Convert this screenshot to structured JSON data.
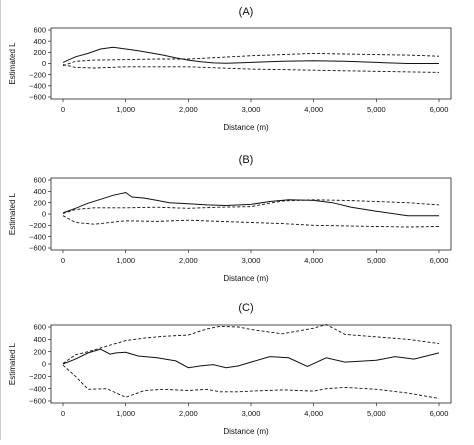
{
  "chart_data": [
    {
      "type": "line",
      "title": "(A)",
      "xlabel": "Distance (m)",
      "ylabel": "Estimated L",
      "xlim": [
        0,
        6000
      ],
      "ylim": [
        -600,
        600
      ],
      "xticks": [
        0,
        1000,
        2000,
        3000,
        4000,
        5000,
        6000
      ],
      "xtick_labels": [
        "0",
        "1,000",
        "2,000",
        "3,000",
        "4,000",
        "5,000",
        "6,000"
      ],
      "yticks": [
        600,
        400,
        200,
        0,
        -200,
        -400,
        -600
      ],
      "ytick_labels": [
        "600",
        "400",
        "200",
        "0",
        "−200",
        "−400",
        "−600"
      ],
      "grid": false,
      "series": [
        {
          "style": "solid",
          "x": [
            0,
            200,
            400,
            600,
            800,
            1000,
            1200,
            1400,
            1600,
            1800,
            2000,
            2200,
            2400,
            2600,
            2800,
            3000,
            3500,
            4000,
            4500,
            5000,
            5500,
            6000
          ],
          "y": [
            20,
            120,
            180,
            260,
            290,
            260,
            230,
            190,
            150,
            100,
            60,
            30,
            10,
            5,
            10,
            20,
            40,
            50,
            40,
            20,
            0,
            0
          ]
        },
        {
          "style": "dashed",
          "x": [
            0,
            200,
            500,
            1000,
            1500,
            2000,
            2500,
            3000,
            3500,
            4000,
            4500,
            5000,
            5500,
            6000
          ],
          "y": [
            -40,
            40,
            60,
            70,
            80,
            80,
            110,
            140,
            160,
            180,
            170,
            160,
            150,
            130
          ]
        },
        {
          "style": "dashed",
          "x": [
            0,
            200,
            500,
            1000,
            1500,
            2000,
            2500,
            3000,
            3500,
            4000,
            4500,
            5000,
            5500,
            6000
          ],
          "y": [
            -20,
            -70,
            -80,
            -60,
            -60,
            -60,
            -80,
            -100,
            -110,
            -120,
            -130,
            -140,
            -150,
            -160
          ]
        }
      ]
    },
    {
      "type": "line",
      "title": "(B)",
      "xlabel": "Distance (m)",
      "ylabel": "Estimated L",
      "xlim": [
        0,
        6000
      ],
      "ylim": [
        -600,
        600
      ],
      "xticks": [
        0,
        1000,
        2000,
        3000,
        4000,
        5000,
        6000
      ],
      "xtick_labels": [
        "0",
        "1,000",
        "2,000",
        "3,000",
        "4,000",
        "5,000",
        "6,000"
      ],
      "yticks": [
        600,
        400,
        200,
        0,
        -200,
        -400,
        -600
      ],
      "ytick_labels": [
        "600",
        "400",
        "200",
        "0",
        "−200",
        "−400",
        "−600"
      ],
      "grid": false,
      "series": [
        {
          "style": "solid",
          "x": [
            0,
            200,
            400,
            600,
            800,
            1000,
            1100,
            1300,
            1500,
            1700,
            2000,
            2300,
            2600,
            3000,
            3300,
            3600,
            4000,
            4300,
            4600,
            5000,
            5500,
            6000
          ],
          "y": [
            20,
            100,
            190,
            260,
            330,
            380,
            300,
            280,
            240,
            200,
            180,
            160,
            150,
            170,
            220,
            250,
            240,
            200,
            120,
            50,
            -30,
            -30
          ]
        },
        {
          "style": "dashed",
          "x": [
            0,
            200,
            500,
            1000,
            1500,
            2000,
            2500,
            3000,
            3500,
            4000,
            4500,
            5000,
            5500,
            6000
          ],
          "y": [
            10,
            80,
            110,
            110,
            120,
            100,
            120,
            130,
            230,
            250,
            240,
            220,
            200,
            160
          ]
        },
        {
          "style": "dashed",
          "x": [
            0,
            200,
            500,
            1000,
            1500,
            2000,
            2500,
            3000,
            3500,
            4000,
            4500,
            5000,
            5500,
            6000
          ],
          "y": [
            -30,
            -150,
            -180,
            -120,
            -130,
            -110,
            -130,
            -150,
            -170,
            -200,
            -210,
            -220,
            -230,
            -220
          ]
        }
      ]
    },
    {
      "type": "line",
      "title": "(C)",
      "xlabel": "Distance (m)",
      "ylabel": "Estimated L",
      "xlim": [
        0,
        6000
      ],
      "ylim": [
        -600,
        600
      ],
      "xticks": [
        0,
        1000,
        2000,
        3000,
        4000,
        5000,
        6000
      ],
      "xtick_labels": [
        "0",
        "1,000",
        "2,000",
        "3,000",
        "4,000",
        "5,000",
        "6,000"
      ],
      "yticks": [
        600,
        400,
        200,
        0,
        -200,
        -400,
        -600
      ],
      "ytick_labels": [
        "600",
        "400",
        "200",
        "0",
        "−200",
        "−400",
        "−600"
      ],
      "grid": false,
      "series": [
        {
          "style": "solid",
          "x": [
            0,
            200,
            400,
            600,
            750,
            850,
            1000,
            1200,
            1500,
            1800,
            2000,
            2200,
            2400,
            2600,
            2800,
            3000,
            3300,
            3600,
            3900,
            4200,
            4500,
            5000,
            5300,
            5600,
            6000
          ],
          "y": [
            0,
            80,
            180,
            240,
            160,
            180,
            190,
            130,
            100,
            50,
            -60,
            -30,
            -10,
            -60,
            -30,
            30,
            120,
            100,
            -40,
            100,
            30,
            60,
            120,
            80,
            180
          ]
        },
        {
          "style": "dashed",
          "x": [
            0,
            200,
            400,
            700,
            1000,
            1300,
            1600,
            2000,
            2300,
            2500,
            2800,
            3000,
            3500,
            4000,
            4200,
            4500,
            5000,
            5500,
            6000
          ],
          "y": [
            10,
            150,
            200,
            290,
            380,
            420,
            450,
            470,
            570,
            610,
            600,
            560,
            490,
            580,
            640,
            480,
            440,
            400,
            330
          ]
        },
        {
          "style": "dashed",
          "x": [
            0,
            200,
            400,
            700,
            1000,
            1300,
            1600,
            2000,
            2300,
            2500,
            2800,
            3000,
            3500,
            4000,
            4200,
            4500,
            5000,
            5500,
            6000
          ],
          "y": [
            -20,
            -200,
            -410,
            -400,
            -540,
            -430,
            -410,
            -430,
            -410,
            -450,
            -450,
            -440,
            -420,
            -440,
            -400,
            -380,
            -410,
            -470,
            -560
          ]
        }
      ]
    }
  ]
}
